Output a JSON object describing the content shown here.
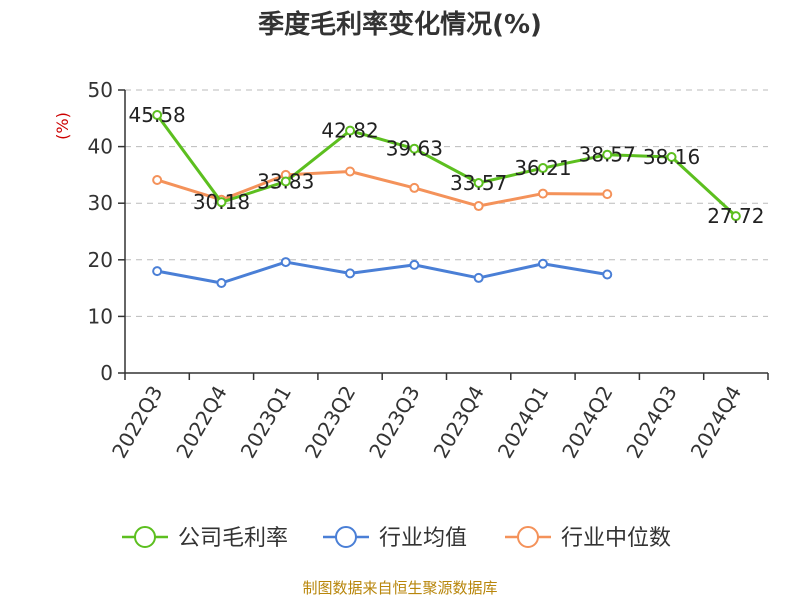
{
  "title": "季度毛利率变化情况(%)",
  "source": "制图数据来自恒生聚源数据库",
  "colors": {
    "source": "#b8860b",
    "unit": "#cc0000",
    "axis": "#333333",
    "grid": "#bbbbbb"
  },
  "chart_data": {
    "type": "line",
    "categories": [
      "2022Q3",
      "2022Q4",
      "2023Q1",
      "2023Q2",
      "2023Q3",
      "2023Q4",
      "2024Q1",
      "2024Q2",
      "2024Q3",
      "2024Q4"
    ],
    "ylabel": "(%)",
    "ylim": [
      0,
      50
    ],
    "yticks": [
      0,
      10,
      20,
      30,
      40,
      50
    ],
    "grid": true,
    "legend_position": "bottom",
    "series": [
      {
        "name": "公司毛利率",
        "color": "#5cbf1f",
        "show_labels": true,
        "values": [
          45.58,
          30.18,
          33.83,
          42.82,
          39.63,
          33.57,
          36.21,
          38.57,
          38.16,
          27.72
        ]
      },
      {
        "name": "行业均值",
        "color": "#4a7fd6",
        "show_labels": false,
        "values": [
          18.0,
          15.9,
          19.6,
          17.6,
          19.1,
          16.8,
          19.3,
          17.4,
          null,
          null
        ]
      },
      {
        "name": "行业中位数",
        "color": "#f4925a",
        "show_labels": false,
        "values": [
          34.1,
          30.6,
          35.0,
          35.6,
          32.7,
          29.5,
          31.7,
          31.6,
          null,
          null
        ]
      }
    ]
  }
}
